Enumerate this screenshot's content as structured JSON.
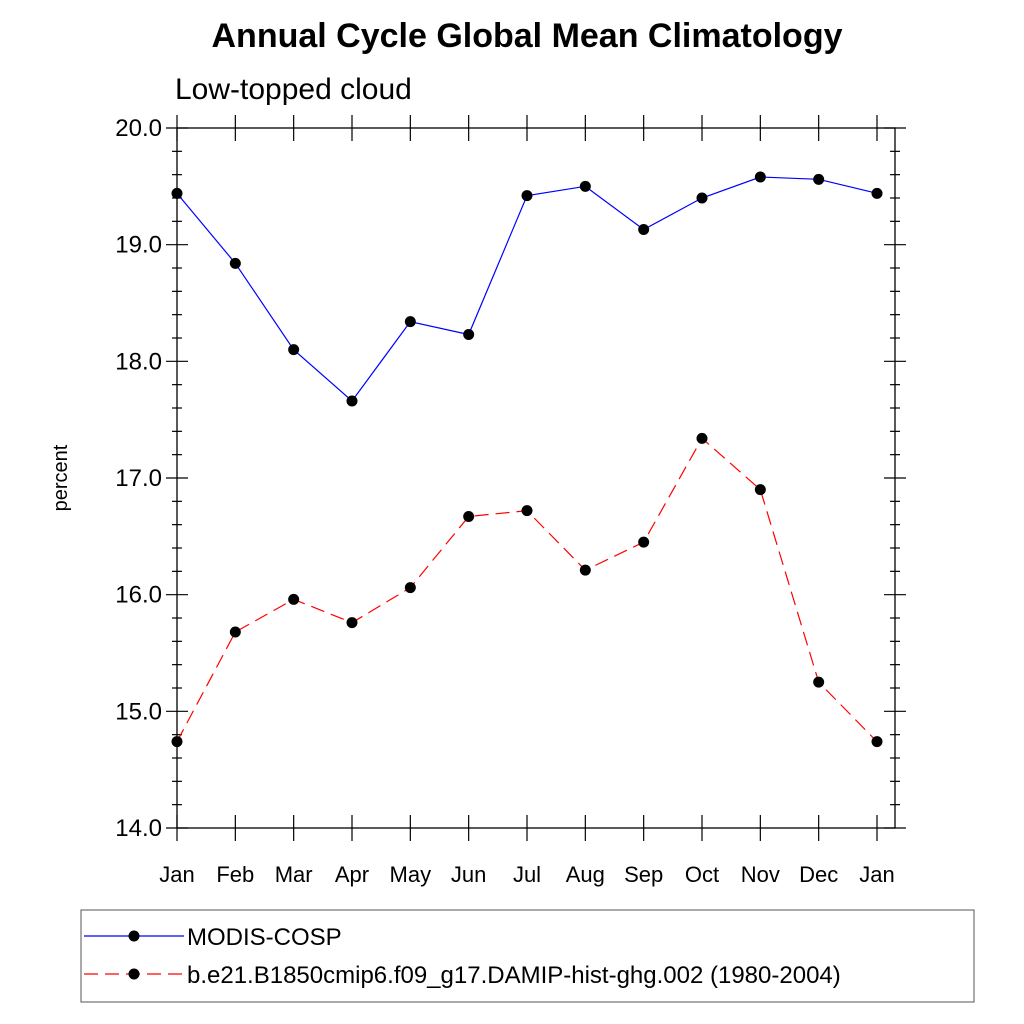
{
  "chart_data": {
    "type": "line",
    "title": "Annual Cycle Global Mean Climatology",
    "subtitle": "Low-topped cloud",
    "xlabel": "",
    "ylabel": "percent",
    "categories": [
      "Jan",
      "Feb",
      "Mar",
      "Apr",
      "May",
      "Jun",
      "Jul",
      "Aug",
      "Sep",
      "Oct",
      "Nov",
      "Dec",
      "Jan"
    ],
    "ylim": [
      14.0,
      20.0
    ],
    "yticks": [
      "14.0",
      "15.0",
      "16.0",
      "17.0",
      "18.0",
      "19.0",
      "20.0"
    ],
    "grid": false,
    "legend_position": "bottom",
    "series": [
      {
        "name": "MODIS-COSP",
        "color": "#0000ff",
        "dash": "solid",
        "marker": "filled-circle",
        "values": [
          19.44,
          18.84,
          18.1,
          17.66,
          18.34,
          18.23,
          19.42,
          19.5,
          19.13,
          19.4,
          19.58,
          19.56,
          19.44
        ]
      },
      {
        "name": "b.e21.B1850cmip6.f09_g17.DAMIP-hist-ghg.002 (1980-2004)",
        "color": "#ff0000",
        "dash": "dashed",
        "marker": "filled-circle",
        "values": [
          14.74,
          15.68,
          15.96,
          15.76,
          16.06,
          16.67,
          16.72,
          16.21,
          16.45,
          17.34,
          16.9,
          15.25,
          14.74
        ]
      }
    ]
  }
}
